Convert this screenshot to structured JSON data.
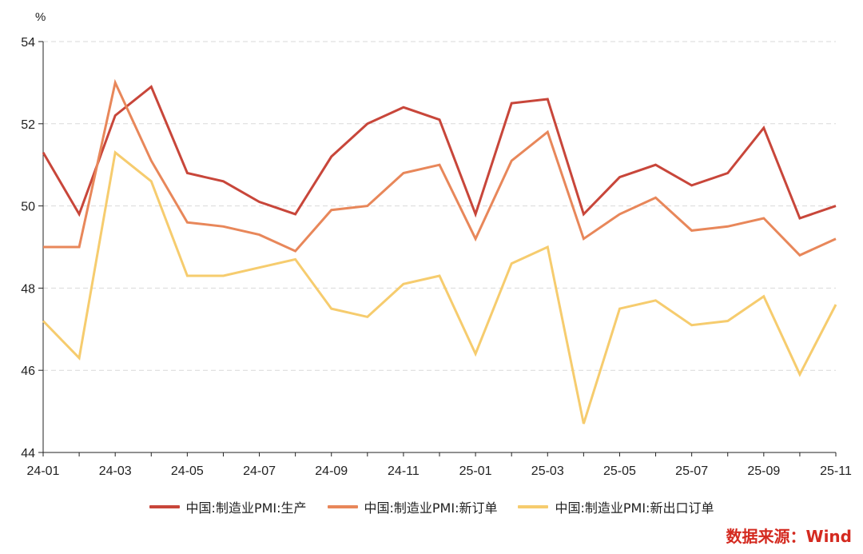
{
  "chart_data": {
    "type": "line",
    "ylabel": "%",
    "ylim": [
      44,
      54
    ],
    "yticks": [
      44,
      46,
      48,
      50,
      52,
      54
    ],
    "grid": true,
    "legend_position": "bottom",
    "x": [
      "24-01",
      "24-02",
      "24-03",
      "24-04",
      "24-05",
      "24-06",
      "24-07",
      "24-08",
      "24-09",
      "24-10",
      "24-11",
      "24-12",
      "25-01",
      "25-02",
      "25-03",
      "25-04",
      "25-05",
      "25-06",
      "25-07",
      "25-08",
      "25-09",
      "25-10",
      "25-11"
    ],
    "xtick_labels": [
      "24-01",
      "24-03",
      "24-05",
      "24-07",
      "24-09",
      "24-11",
      "25-01",
      "25-03",
      "25-05",
      "25-07",
      "25-09",
      "25-11"
    ],
    "series": [
      {
        "name": "中国:制造业PMI:生产",
        "color": "#c8463a",
        "values": [
          51.3,
          49.8,
          52.2,
          52.9,
          50.8,
          50.6,
          50.1,
          49.8,
          51.2,
          52.0,
          52.4,
          52.1,
          49.8,
          52.5,
          52.6,
          49.8,
          50.7,
          51.0,
          50.5,
          50.8,
          51.9,
          49.7,
          50.0
        ]
      },
      {
        "name": "中国:制造业PMI:新订单",
        "color": "#e8875a",
        "values": [
          49.0,
          49.0,
          53.0,
          51.1,
          49.6,
          49.5,
          49.3,
          48.9,
          49.9,
          50.0,
          50.8,
          51.0,
          49.2,
          51.1,
          51.8,
          49.2,
          49.8,
          50.2,
          49.4,
          49.5,
          49.7,
          48.8,
          49.2
        ]
      },
      {
        "name": "中国:制造业PMI:新出口订单",
        "color": "#f6cc6e",
        "values": [
          47.2,
          46.3,
          51.3,
          50.6,
          48.3,
          48.3,
          48.5,
          48.7,
          47.5,
          47.3,
          48.1,
          48.3,
          46.4,
          48.6,
          49.0,
          44.7,
          47.5,
          47.7,
          47.1,
          47.2,
          47.8,
          45.9,
          47.6
        ]
      }
    ]
  },
  "source_text": "数据来源：Wind"
}
